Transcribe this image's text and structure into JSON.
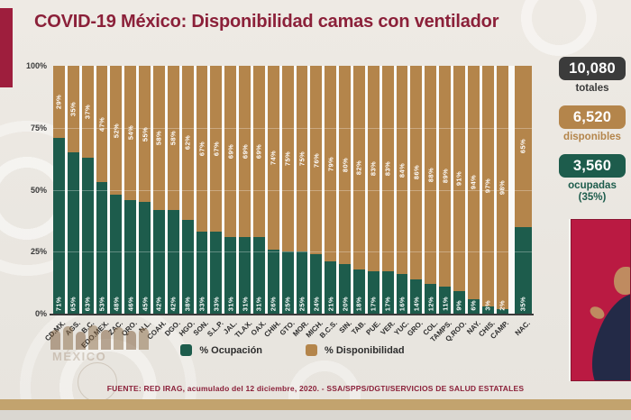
{
  "title": "COVID-19 México: Disponibilidad camas con ventilador",
  "colors": {
    "occupied_green": "#1d5c4c",
    "available_tan": "#b4854b",
    "title_maroon": "#8b2039",
    "accent_bar_red": "#9e1e3d",
    "totals_box_dark": "#3b3b3b",
    "footer_gold_strip": "#c2a36e",
    "video_inset_crimson": "#ba1a42"
  },
  "chart_data": {
    "type": "bar",
    "stacked": true,
    "ylim": [
      0,
      100
    ],
    "y_ticks": [
      "100%",
      "75%",
      "50%",
      "25%",
      "0%"
    ],
    "grid": "subtle-horizontal",
    "legend_position": "bottom",
    "categories": [
      "CD.MX.",
      "AGS.",
      "B.C.",
      "EDO.MEX.",
      "ZAC.",
      "QRO.",
      "N.L.",
      "COAH.",
      "DGO.",
      "HGO.",
      "SON.",
      "S.L.P.",
      "JAL.",
      "TLAX.",
      "OAX.",
      "CHIH.",
      "GTO.",
      "MOR.",
      "MICH.",
      "B.C.S.",
      "SIN.",
      "TAB.",
      "PUE.",
      "VER.",
      "YUC.",
      "GRO.",
      "COL.",
      "TAMPS.",
      "Q.ROO.",
      "NAY.",
      "CHIS.",
      "CAMP.",
      "NAC."
    ],
    "series": [
      {
        "name": "% Ocupación",
        "color": "#1d5c4c",
        "values": [
          71,
          65,
          63,
          53,
          48,
          46,
          45,
          42,
          42,
          38,
          33,
          33,
          31,
          31,
          31,
          26,
          25,
          25,
          24,
          21,
          20,
          18,
          17,
          17,
          16,
          14,
          12,
          11,
          9,
          6,
          3,
          2,
          35
        ]
      },
      {
        "name": "% Disponibilidad",
        "color": "#b4854b",
        "values": [
          29,
          35,
          37,
          47,
          52,
          54,
          55,
          58,
          58,
          62,
          67,
          67,
          69,
          69,
          69,
          74,
          75,
          75,
          76,
          79,
          80,
          82,
          83,
          83,
          84,
          86,
          88,
          89,
          91,
          94,
          97,
          98,
          65
        ]
      }
    ]
  },
  "stats": [
    {
      "value": "10,080",
      "label": "totales",
      "color": "#3b3b3b"
    },
    {
      "value": "6,520",
      "label": "disponibles",
      "color": "#b4854b"
    },
    {
      "value": "3,560",
      "label": "ocupadas",
      "sublabel": "(35%)",
      "color": "#1d5c4c"
    }
  ],
  "footer": {
    "source": "FUENTE: RED IRAG, acumulado del 12 diciembre, 2020. - SSA/SPPS/DGTI/SERVICIOS DE SALUD ESTATALES"
  },
  "watermark": {
    "text": "MÉXICO"
  }
}
